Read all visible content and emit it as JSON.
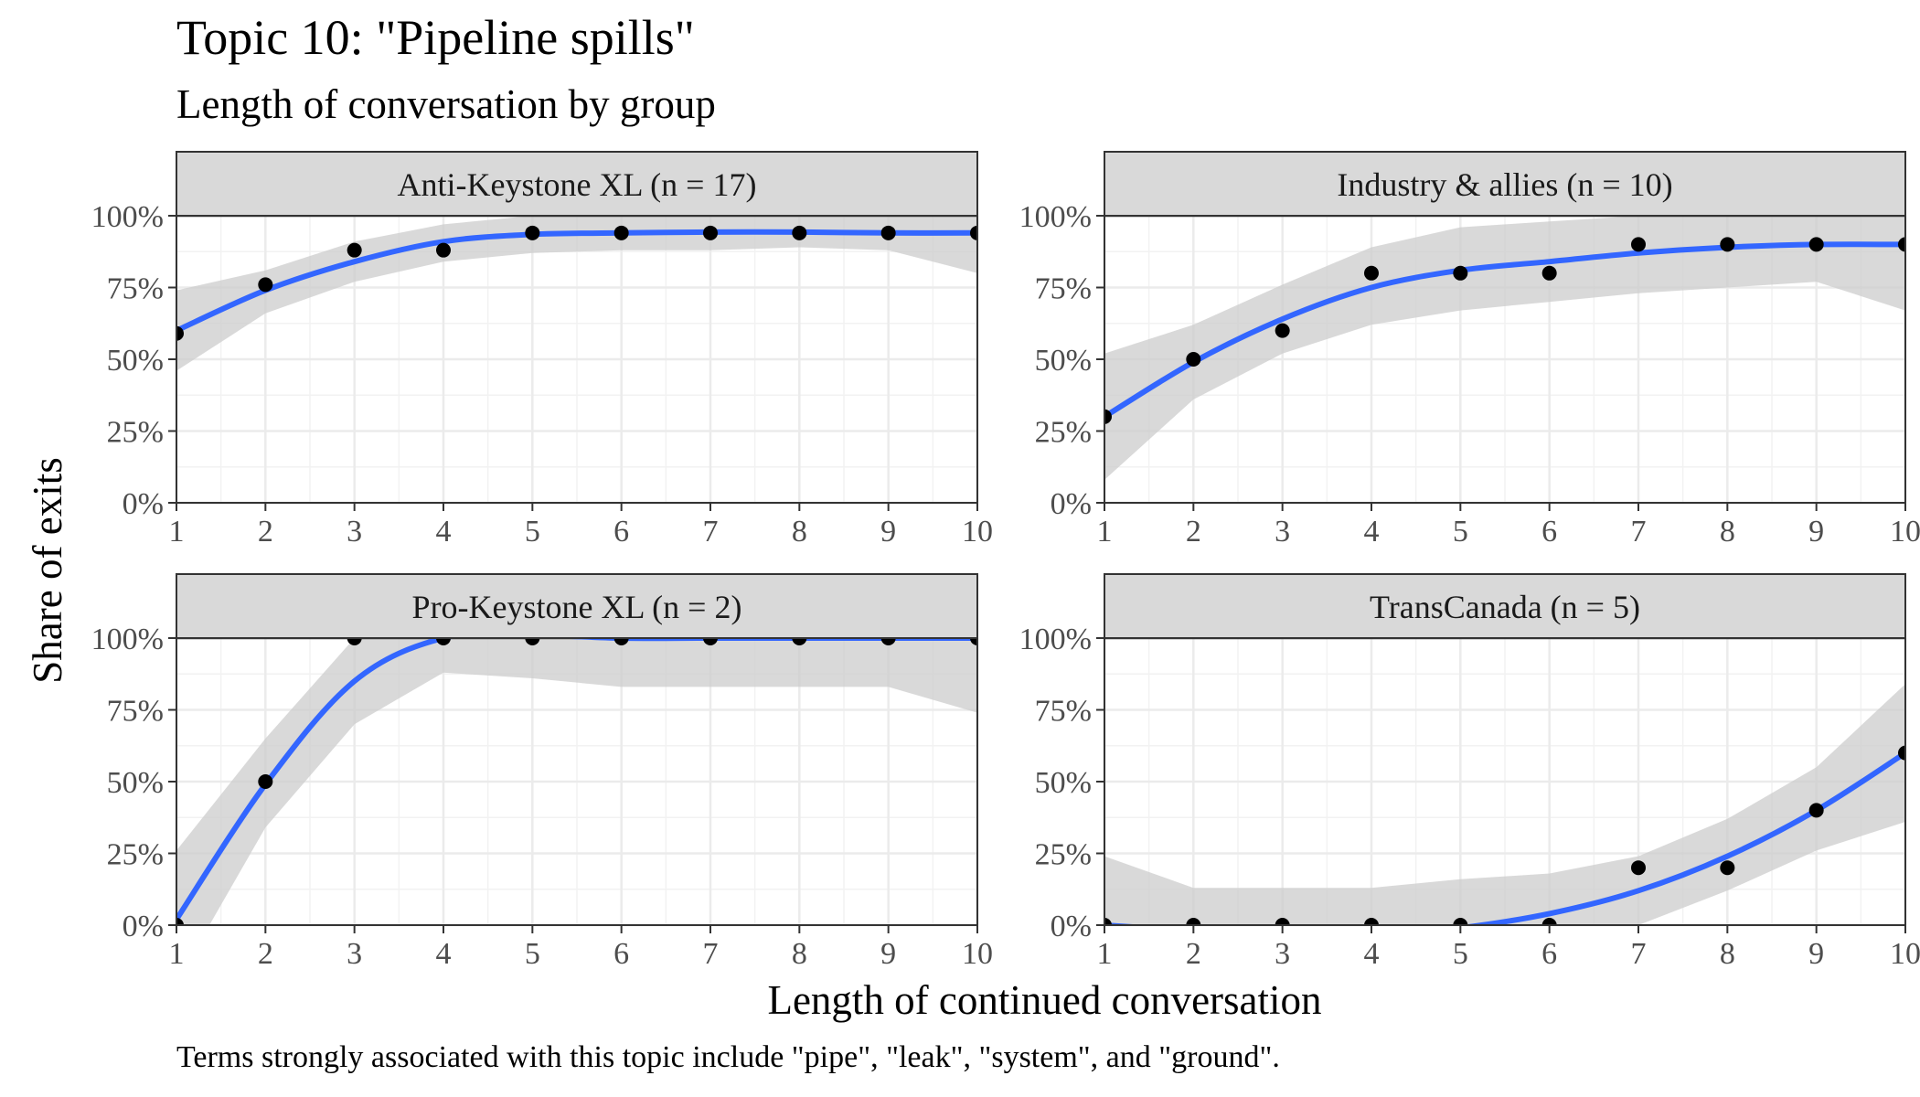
{
  "title": "Topic 10: \"Pipeline spills\"",
  "subtitle": "Length of conversation by group",
  "caption": "Terms strongly associated with this topic include \"pipe\", \"leak\", \"system\", and \"ground\".",
  "chart_data": {
    "type": "scatter",
    "title": "Topic 10: \"Pipeline spills\"",
    "subtitle": "Length of conversation by group",
    "xlabel": "Length of continued conversation",
    "ylabel": "Share of exits",
    "xlim": [
      1,
      10
    ],
    "ylim": [
      0,
      1.2
    ],
    "x_ticks": [
      1,
      2,
      3,
      4,
      5,
      6,
      7,
      8,
      9,
      10
    ],
    "y_ticks": [
      0,
      0.25,
      0.5,
      0.75,
      1.0
    ],
    "y_tick_labels": [
      "0%",
      "25%",
      "50%",
      "75%",
      "100%"
    ],
    "reference_line": 1.0,
    "grid": true,
    "colors": {
      "points": "#000000",
      "smooth": "#3366FF",
      "ribbon": "#CCCCCC",
      "strip": "#D9D9D9"
    },
    "panels": [
      {
        "name": "Anti-Keystone XL (n = 17)",
        "x": [
          1,
          2,
          3,
          4,
          5,
          6,
          7,
          8,
          9,
          10
        ],
        "points": [
          0.59,
          0.76,
          0.88,
          0.88,
          0.94,
          0.94,
          0.94,
          0.94,
          0.94,
          0.94
        ],
        "smooth": [
          0.6,
          0.74,
          0.84,
          0.91,
          0.935,
          0.94,
          0.943,
          0.943,
          0.94,
          0.94
        ],
        "ribbon_lower": [
          0.46,
          0.66,
          0.77,
          0.84,
          0.87,
          0.88,
          0.88,
          0.89,
          0.88,
          0.8
        ],
        "ribbon_upper": [
          0.74,
          0.81,
          0.91,
          0.97,
          1.0,
          1.0,
          1.0,
          1.0,
          1.01,
          1.09
        ]
      },
      {
        "name": "Industry & allies (n = 10)",
        "x": [
          1,
          2,
          3,
          4,
          5,
          6,
          7,
          8,
          9,
          10
        ],
        "points": [
          0.3,
          0.5,
          0.6,
          0.8,
          0.8,
          0.8,
          0.9,
          0.9,
          0.9,
          0.9
        ],
        "smooth": [
          0.3,
          0.49,
          0.64,
          0.75,
          0.81,
          0.84,
          0.87,
          0.89,
          0.9,
          0.9
        ],
        "ribbon_lower": [
          0.08,
          0.36,
          0.52,
          0.62,
          0.67,
          0.7,
          0.73,
          0.75,
          0.77,
          0.67
        ],
        "ribbon_upper": [
          0.52,
          0.62,
          0.76,
          0.89,
          0.96,
          0.98,
          1.0,
          1.02,
          1.03,
          1.13
        ]
      },
      {
        "name": "Pro-Keystone XL (n = 2)",
        "x": [
          1,
          2,
          3,
          4,
          5,
          6,
          7,
          8,
          9,
          10
        ],
        "points": [
          0.0,
          0.5,
          1.0,
          1.0,
          1.0,
          1.0,
          1.0,
          1.0,
          1.0,
          1.0
        ],
        "smooth": [
          0.02,
          0.49,
          0.85,
          1.0,
          1.01,
          1.0,
          1.0,
          1.0,
          1.0,
          1.0
        ],
        "ribbon_lower": [
          -0.2,
          0.34,
          0.7,
          0.88,
          0.86,
          0.83,
          0.83,
          0.83,
          0.83,
          0.74
        ],
        "ribbon_upper": [
          0.26,
          0.65,
          1.0,
          1.12,
          1.15,
          1.16,
          1.16,
          1.17,
          1.17,
          1.26
        ]
      },
      {
        "name": "TransCanada (n = 5)",
        "x": [
          1,
          2,
          3,
          4,
          5,
          6,
          7,
          8,
          9,
          10
        ],
        "points": [
          0.0,
          0.0,
          0.0,
          0.0,
          0.0,
          0.0,
          0.2,
          0.2,
          0.4,
          0.6
        ],
        "smooth": [
          0.0,
          -0.02,
          -0.04,
          -0.04,
          -0.01,
          0.04,
          0.12,
          0.24,
          0.4,
          0.6
        ],
        "ribbon_lower": [
          -0.25,
          -0.16,
          -0.17,
          -0.17,
          -0.14,
          -0.08,
          0.0,
          0.12,
          0.26,
          0.36
        ],
        "ribbon_upper": [
          0.24,
          0.13,
          0.13,
          0.13,
          0.16,
          0.18,
          0.24,
          0.37,
          0.55,
          0.84
        ]
      }
    ]
  }
}
